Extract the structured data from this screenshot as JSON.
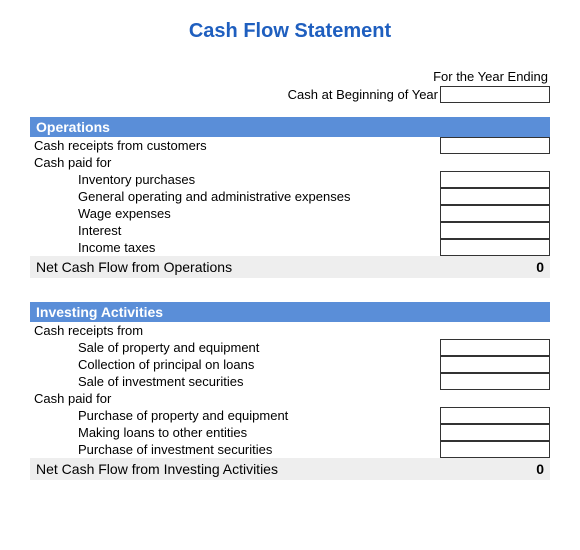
{
  "title": "Cash Flow Statement",
  "header": {
    "year_ending_label": "For the Year Ending",
    "beginning_cash_label": "Cash at Beginning of Year"
  },
  "colors": {
    "title": "#1f5fbf",
    "section_header_bg": "#5a8ed8",
    "section_header_text": "#ffffff",
    "subtotal_bg": "#eeeeee",
    "border": "#333333",
    "background": "#ffffff"
  },
  "sections": {
    "operations": {
      "title": "Operations",
      "receipts_label": "Cash receipts from customers",
      "paid_for_label": "Cash paid for",
      "items": {
        "inventory": "Inventory purchases",
        "general": "General operating and administrative expenses",
        "wage": "Wage expenses",
        "interest": "Interest",
        "income_taxes": "Income taxes"
      },
      "subtotal_label": "Net Cash Flow from Operations",
      "subtotal_value": "0"
    },
    "investing": {
      "title": "Investing Activities",
      "receipts_label": "Cash receipts from",
      "receipts_items": {
        "sale_property": "Sale of property and equipment",
        "collection": "Collection of principal on loans",
        "sale_securities": "Sale of investment securities"
      },
      "paid_for_label": "Cash paid for",
      "paid_items": {
        "purchase_property": "Purchase of property and equipment",
        "loans": "Making loans to other entities",
        "purchase_securities": "Purchase of investment securities"
      },
      "subtotal_label": "Net Cash Flow from Investing Activities",
      "subtotal_value": "0"
    }
  }
}
